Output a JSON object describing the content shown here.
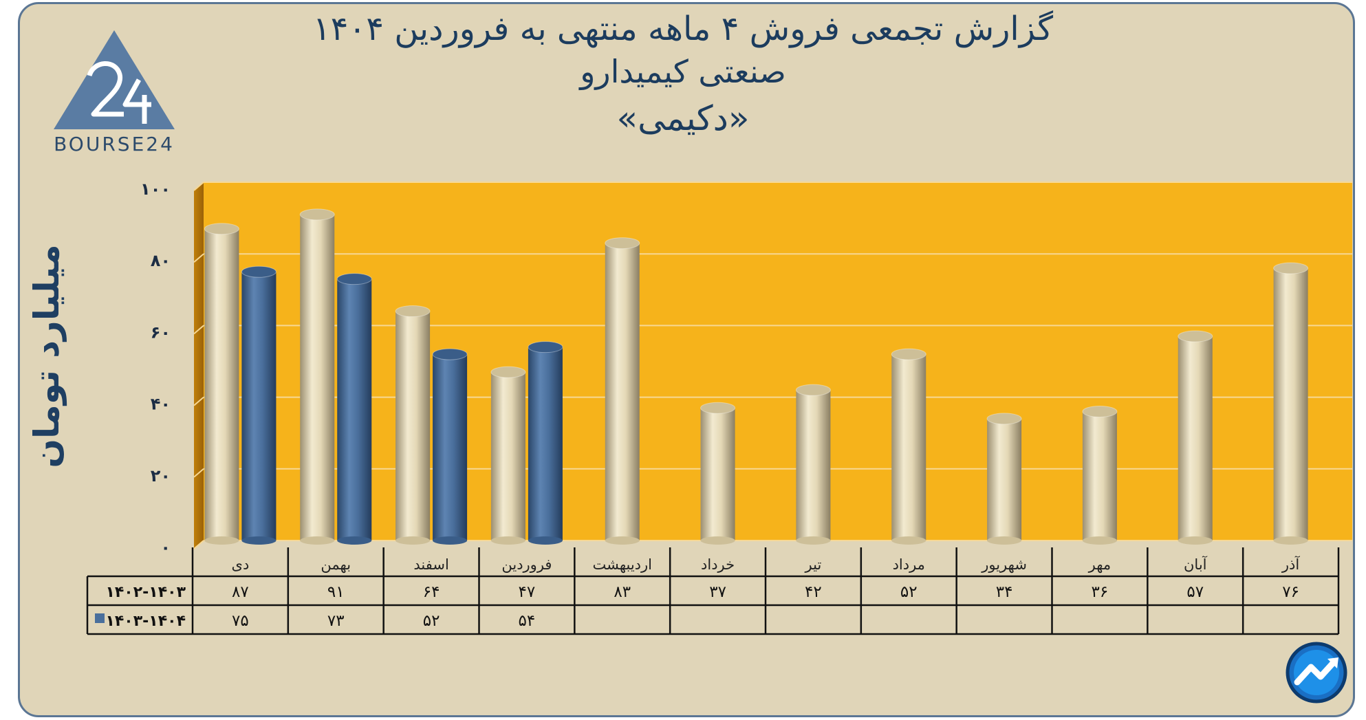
{
  "report": {
    "title_line1": "گزارش تجمعی فروش ۴ ماهه منتهی به فروردین ۱۴۰۴",
    "title_line2": "صنعتی کیمیدارو",
    "title_line3": "«دکیمی»"
  },
  "logo": {
    "text": "BOURSE24",
    "icon": "bourse24-triangle-logo"
  },
  "corner_badge": {
    "icon": "trend-arrow-badge-icon"
  },
  "colors": {
    "background": "#e0d5b8",
    "plot_area": "#f6b31b",
    "series_1402_1403": "#e3d6b1",
    "series_1403_1404": "#4a6f9c",
    "text_dark": "#1c3c5e"
  },
  "chart_data": {
    "type": "bar",
    "ylabel": "میلیارد تومان",
    "ylim": [
      0,
      100
    ],
    "yticks": [
      "۰",
      "۲۰",
      "۴۰",
      "۶۰",
      "۸۰",
      "۱۰۰"
    ],
    "ytick_values": [
      0,
      20,
      40,
      60,
      80,
      100
    ],
    "categories": [
      "دی",
      "بهمن",
      "اسفند",
      "فروردین",
      "اردیبهشت",
      "خرداد",
      "تیر",
      "مرداد",
      "شهریور",
      "مهر",
      "آبان",
      "آذر"
    ],
    "series": [
      {
        "name": "۱۴۰۲-۱۴۰۳",
        "values": [
          87,
          91,
          64,
          47,
          83,
          37,
          42,
          52,
          34,
          36,
          57,
          76
        ],
        "labels": [
          "۸۷",
          "۹۱",
          "۶۴",
          "۴۷",
          "۸۳",
          "۳۷",
          "۴۲",
          "۵۲",
          "۳۴",
          "۳۶",
          "۵۷",
          "۷۶"
        ]
      },
      {
        "name": "۱۴۰۳-۱۴۰۴",
        "values": [
          75,
          73,
          52,
          54,
          null,
          null,
          null,
          null,
          null,
          null,
          null,
          null
        ],
        "labels": [
          "۷۵",
          "۷۳",
          "۵۲",
          "۵۴",
          "",
          "",
          "",
          "",
          "",
          "",
          "",
          ""
        ]
      }
    ],
    "grid": true,
    "legend": "data-table"
  }
}
